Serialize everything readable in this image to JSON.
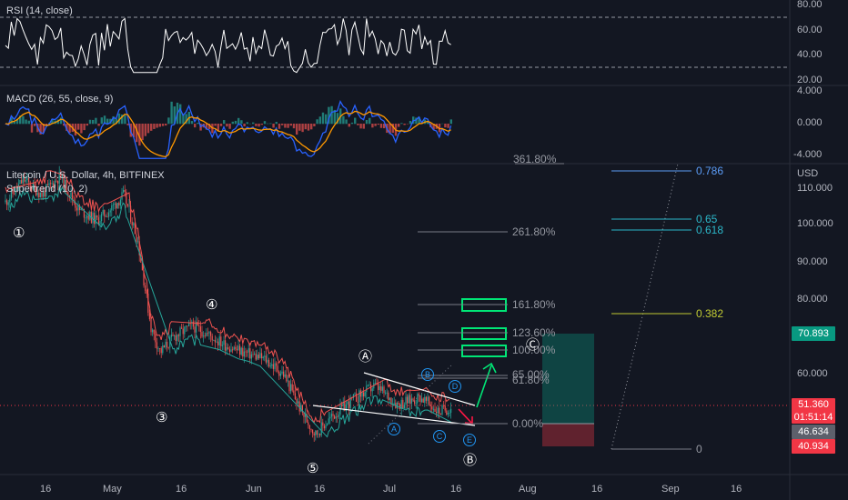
{
  "rsi": {
    "label": "RSI (14, close)",
    "scale": [
      80,
      60,
      40,
      20
    ],
    "scale_labels": [
      "80.00",
      "60.00",
      "40.00",
      "20.00"
    ],
    "overbought": 70,
    "oversold": 30
  },
  "macd": {
    "label": "MACD (26, 55, close, 9)",
    "scale": [
      4,
      0,
      -4
    ],
    "scale_labels": [
      "4.000",
      "0.000",
      "-4.000"
    ]
  },
  "main": {
    "title": "Litecoin / U.S. Dollar, 4h, BITFINEX",
    "supertrend_label": "Supertrend (10, 2)",
    "currency": "USD",
    "price_scale": [
      110,
      100,
      90,
      80,
      60
    ],
    "price_scale_labels": [
      "110.000",
      "100.000",
      "90.000",
      "80.000",
      "60.000"
    ],
    "last_price": "51.360",
    "countdown": "01:51:14",
    "tag_46": "46.634",
    "tag_40": "40.934",
    "tag_70": "70.893",
    "top_fib_partial": "361.80%"
  },
  "fib_extension": [
    {
      "label": "261.80%"
    },
    {
      "label": "161.80%"
    },
    {
      "label": "123.60%"
    },
    {
      "label": "100.00%"
    },
    {
      "label": "65.00%"
    },
    {
      "label": "61.80%"
    },
    {
      "label": "0.00%"
    }
  ],
  "fib_retracement": [
    {
      "label": "0.786",
      "color": "#5b9cf6"
    },
    {
      "label": "0.65",
      "color": "#2bb7c9"
    },
    {
      "label": "0.618",
      "color": "#2bb7c9"
    },
    {
      "label": "0.382",
      "color": "#c0ca33"
    },
    {
      "label": "0",
      "color": "#9598a1"
    }
  ],
  "waves": {
    "impulse": [
      "①",
      "③",
      "④",
      "⑤"
    ],
    "correction": [
      "Ⓐ",
      "Ⓑ",
      "Ⓒ"
    ],
    "triangle": [
      "A",
      "B",
      "C",
      "D",
      "E"
    ]
  },
  "time_axis": [
    "16",
    "May",
    "16",
    "Jun",
    "16",
    "Jul",
    "16",
    "Aug",
    "16",
    "Sep",
    "16"
  ],
  "colors": {
    "background": "#131722",
    "up": "#26a69a",
    "down": "#ef5350",
    "rsi_line": "#ffffff",
    "macd_line": "#2962ff",
    "signal_line": "#ff9800",
    "target_box": "#00e676",
    "arrow_up": "#00e676",
    "arrow_down": "#ff1744",
    "tag_red": "#f23645",
    "tag_green": "#089981",
    "tag_grey": "#5d606b"
  },
  "chart_data": {
    "type": "candlestick",
    "title": "Litecoin / U.S. Dollar, 4h, BITFINEX",
    "timeframe": "4h",
    "unit": "USD",
    "ylim": [
      35,
      118
    ],
    "x_ticks": [
      "16",
      "May",
      "16",
      "Jun",
      "16",
      "Jul",
      "16",
      "Aug",
      "16",
      "Sep",
      "16"
    ],
    "price_path": [
      {
        "date": "Apr 08",
        "price": 106
      },
      {
        "date": "Apr 12",
        "price": 112
      },
      {
        "date": "Apr 16",
        "price": 108
      },
      {
        "date": "Apr 20",
        "price": 113
      },
      {
        "date": "Apr 24",
        "price": 104
      },
      {
        "date": "Apr 28",
        "price": 101
      },
      {
        "date": "May 01",
        "price": 104
      },
      {
        "date": "May 04",
        "price": 108
      },
      {
        "date": "May 07",
        "price": 96
      },
      {
        "date": "May 10",
        "price": 72
      },
      {
        "date": "May 12",
        "price": 66
      },
      {
        "date": "May 15",
        "price": 70
      },
      {
        "date": "May 19",
        "price": 73
      },
      {
        "date": "May 22",
        "price": 71
      },
      {
        "date": "May 26",
        "price": 68
      },
      {
        "date": "May 30",
        "price": 66
      },
      {
        "date": "Jun 04",
        "price": 64
      },
      {
        "date": "Jun 08",
        "price": 60
      },
      {
        "date": "Jun 12",
        "price": 50
      },
      {
        "date": "Jun 15",
        "price": 44
      },
      {
        "date": "Jun 18",
        "price": 48
      },
      {
        "date": "Jun 23",
        "price": 53
      },
      {
        "date": "Jun 28",
        "price": 57
      },
      {
        "date": "Jul 03",
        "price": 52
      },
      {
        "date": "Jul 08",
        "price": 54
      },
      {
        "date": "Jul 12",
        "price": 50
      },
      {
        "date": "Jul 15",
        "price": 51.36
      }
    ],
    "last_price": 51.36
  }
}
